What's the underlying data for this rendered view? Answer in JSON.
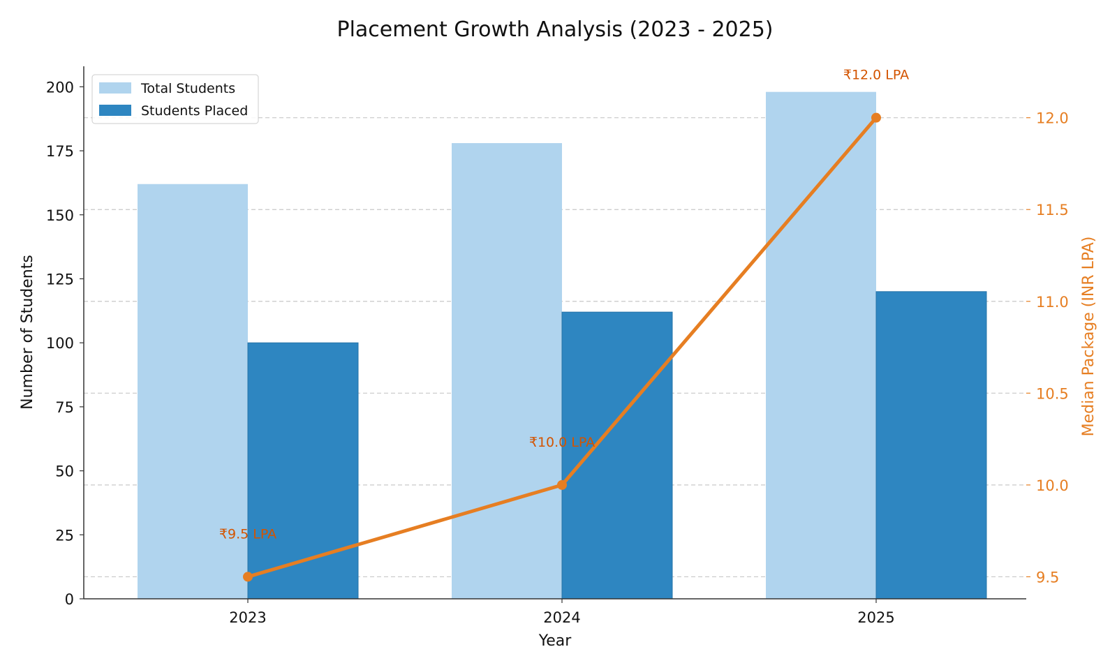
{
  "chart_data": {
    "type": "bar",
    "title": "Placement Growth Analysis (2023 - 2025)",
    "xlabel": "Year",
    "ylabel": "Number of Students",
    "y2label": "Median Package (INR LPA)",
    "categories": [
      "2023",
      "2024",
      "2025"
    ],
    "ylim": [
      0,
      208
    ],
    "y_ticks": [
      0,
      25,
      50,
      75,
      100,
      125,
      150,
      175,
      200
    ],
    "y2lim": [
      9.38,
      12.28
    ],
    "y2_ticks": [
      "9.5",
      "10.0",
      "10.5",
      "11.0",
      "11.5",
      "12.0"
    ],
    "grid": "horizontal dashed (secondary axis)",
    "legend_position": "top-left",
    "series": [
      {
        "name": "Total Students",
        "type": "bar",
        "axis": "left",
        "color": "#b0d4ee",
        "values": [
          162,
          178,
          198
        ]
      },
      {
        "name": "Students Placed",
        "type": "bar",
        "axis": "left",
        "color": "#2e86c1",
        "values": [
          100,
          112,
          120
        ]
      },
      {
        "type": "line",
        "axis": "right",
        "color": "#e67e22",
        "values": [
          9.5,
          10.0,
          12.0
        ],
        "labels": [
          "₹9.5 LPA",
          "₹10.0 LPA",
          "₹12.0 LPA"
        ],
        "label_color": "#d35400"
      }
    ]
  }
}
